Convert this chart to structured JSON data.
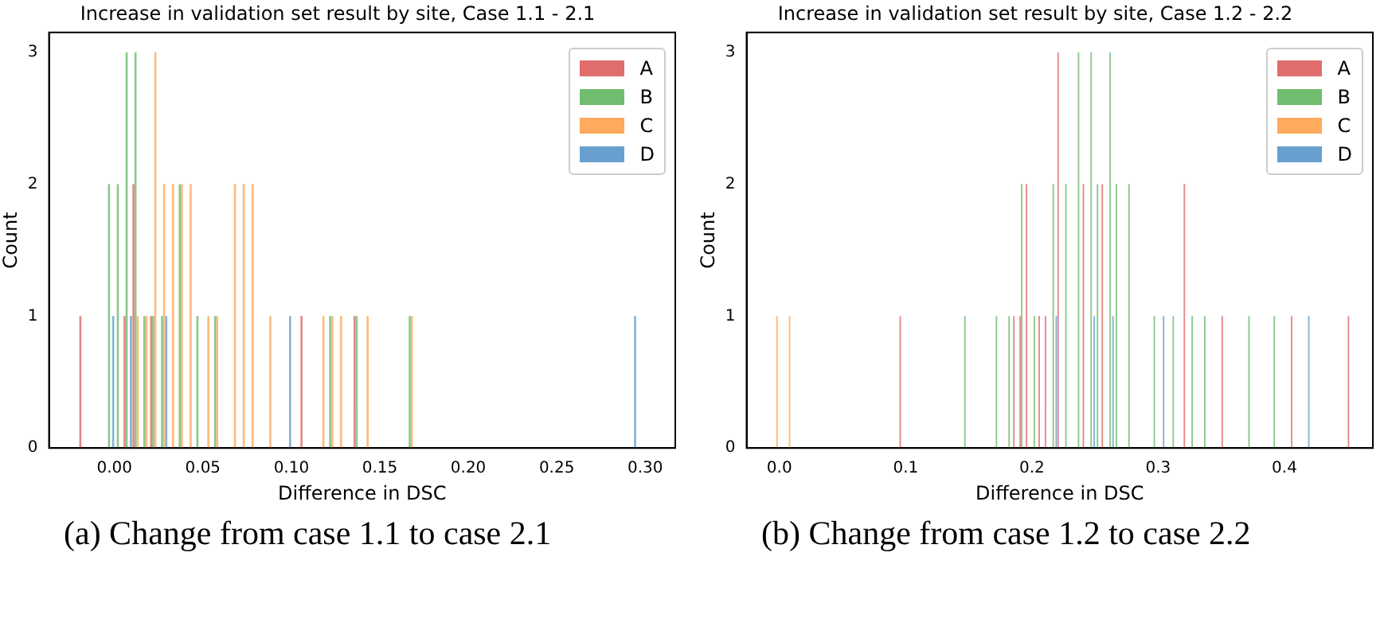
{
  "chart_data": [
    {
      "type": "histogram",
      "title": "Increase in validation set result by site, Case 1.1 - 2.1",
      "xlabel": "Difference in DSC",
      "ylabel": "Count",
      "annotations": [
        "(a) Change from case 1.1 to case 2.1"
      ],
      "legend": "top right",
      "xlim": [
        -0.037,
        0.317
      ],
      "xticks": [
        {
          "value": 0,
          "label": "0.00"
        },
        {
          "value": 0.05,
          "label": "0.05"
        },
        {
          "value": 0.1,
          "label": "0.10"
        },
        {
          "value": 0.15,
          "label": "0.15"
        },
        {
          "value": 0.2,
          "label": "0.20"
        },
        {
          "value": 0.25,
          "label": "0.25"
        },
        {
          "value": 0.3,
          "label": "0.30"
        }
      ],
      "ylim": [
        0,
        3.15
      ],
      "yticks": [
        0,
        1,
        2,
        3
      ],
      "bins": [
        -0.02,
        -0.015,
        -0.01,
        -0.005,
        0,
        0.005,
        0.01,
        0.015,
        0.02,
        0.025,
        0.03,
        0.035,
        0.04,
        0.045,
        0.05,
        0.055,
        0.06,
        0.065,
        0.07,
        0.075,
        0.08,
        0.085,
        0.09,
        0.095,
        0.1,
        0.105,
        0.11,
        0.115,
        0.12,
        0.125,
        0.13,
        0.135,
        0.14,
        0.145,
        0.15,
        0.155,
        0.16,
        0.165,
        0.17,
        0.175,
        0.18,
        0.185,
        0.19,
        0.195,
        0.2,
        0.205,
        0.21,
        0.215,
        0.22,
        0.225,
        0.23,
        0.235,
        0.24,
        0.245,
        0.25,
        0.255,
        0.26,
        0.265,
        0.27,
        0.275,
        0.28,
        0.285,
        0.29,
        0.295,
        0.3
      ],
      "series": [
        {
          "name": "A",
          "color": "#e06c6c",
          "values": [
            1,
            0,
            0,
            0,
            0,
            1,
            2,
            0,
            1,
            0,
            0,
            0,
            0,
            0,
            0,
            0,
            0,
            0,
            0,
            0,
            0,
            0,
            0,
            0,
            0,
            1,
            0,
            0,
            0,
            0,
            0,
            1,
            0,
            0,
            0,
            0,
            0,
            0,
            0,
            0,
            0,
            0,
            0,
            0,
            0,
            0,
            0,
            0,
            0,
            0,
            0,
            0,
            0,
            0,
            0,
            0,
            0,
            0,
            0,
            0,
            0,
            0,
            0,
            0
          ]
        },
        {
          "name": "B",
          "color": "#70bd70",
          "values": [
            0,
            0,
            0,
            2,
            2,
            3,
            3,
            1,
            1,
            1,
            0,
            2,
            0,
            1,
            0,
            1,
            0,
            0,
            0,
            0,
            0,
            0,
            0,
            0,
            0,
            0,
            0,
            0,
            1,
            0,
            0,
            1,
            0,
            0,
            0,
            0,
            0,
            1,
            0,
            0,
            0,
            0,
            0,
            0,
            0,
            0,
            0,
            0,
            0,
            0,
            0,
            0,
            0,
            0,
            0,
            0,
            0,
            0,
            0,
            0,
            0,
            0,
            0,
            0
          ]
        },
        {
          "name": "C",
          "color": "#ffaa5c",
          "values": [
            0,
            0,
            0,
            0,
            0,
            0,
            1,
            1,
            3,
            2,
            2,
            2,
            2,
            0,
            1,
            1,
            0,
            2,
            2,
            2,
            0,
            1,
            0,
            0,
            0,
            0,
            0,
            1,
            1,
            1,
            0,
            0,
            1,
            0,
            0,
            0,
            0,
            1,
            0,
            0,
            0,
            0,
            0,
            0,
            0,
            0,
            0,
            0,
            0,
            0,
            0,
            0,
            0,
            0,
            0,
            0,
            0,
            0,
            0,
            0,
            0,
            0,
            0,
            0
          ]
        },
        {
          "name": "D",
          "color": "#67a0cf",
          "values": [
            0,
            0,
            0,
            1,
            0,
            1,
            0,
            0,
            0,
            1,
            0,
            0,
            0,
            0,
            0,
            0,
            0,
            0,
            0,
            0,
            0,
            0,
            0,
            1,
            0,
            0,
            0,
            0,
            0,
            0,
            0,
            0,
            0,
            0,
            0,
            0,
            0,
            0,
            0,
            0,
            0,
            0,
            0,
            0,
            0,
            0,
            0,
            0,
            0,
            0,
            0,
            0,
            0,
            0,
            0,
            0,
            0,
            0,
            0,
            0,
            0,
            0,
            1,
            0
          ]
        }
      ]
    },
    {
      "type": "histogram",
      "title": "Increase in validation set result by site, Case 1.2 - 2.2",
      "xlabel": "Difference in DSC",
      "ylabel": "Count",
      "annotations": [
        "(b) Change from case 1.2 to case 2.2"
      ],
      "legend": "top right",
      "xlim": [
        -0.026,
        0.47
      ],
      "xticks": [
        {
          "value": 0,
          "label": "0.0"
        },
        {
          "value": 0.1,
          "label": "0.1"
        },
        {
          "value": 0.2,
          "label": "0.2"
        },
        {
          "value": 0.3,
          "label": "0.3"
        },
        {
          "value": 0.4,
          "label": "0.4"
        }
      ],
      "ylim": [
        0,
        3.15
      ],
      "yticks": [
        0,
        1,
        2,
        3
      ],
      "bins": [
        -0.01,
        -0.005,
        0,
        0.005,
        0.01,
        0.015,
        0.02,
        0.025,
        0.03,
        0.035,
        0.04,
        0.045,
        0.05,
        0.055,
        0.06,
        0.065,
        0.07,
        0.075,
        0.08,
        0.085,
        0.09,
        0.095,
        0.1,
        0.105,
        0.11,
        0.115,
        0.12,
        0.125,
        0.13,
        0.135,
        0.14,
        0.145,
        0.15,
        0.155,
        0.16,
        0.165,
        0.17,
        0.175,
        0.18,
        0.185,
        0.19,
        0.195,
        0.2,
        0.205,
        0.21,
        0.215,
        0.22,
        0.225,
        0.23,
        0.235,
        0.24,
        0.245,
        0.25,
        0.255,
        0.26,
        0.265,
        0.27,
        0.275,
        0.28,
        0.285,
        0.29,
        0.295,
        0.3,
        0.305,
        0.31,
        0.315,
        0.32,
        0.325,
        0.33,
        0.335,
        0.34,
        0.345,
        0.35,
        0.355,
        0.36,
        0.365,
        0.37,
        0.375,
        0.38,
        0.385,
        0.39,
        0.395,
        0.4,
        0.405,
        0.41,
        0.415,
        0.42,
        0.425,
        0.43,
        0.435,
        0.44,
        0.445,
        0.45,
        0.455,
        0.46,
        0.465,
        0.47
      ],
      "series": [
        {
          "name": "A",
          "color": "#e06c6c",
          "values": [
            0,
            0,
            0,
            0,
            0,
            0,
            0,
            0,
            0,
            0,
            0,
            0,
            0,
            0,
            0,
            0,
            0,
            0,
            0,
            0,
            0,
            1,
            0,
            0,
            0,
            0,
            0,
            0,
            0,
            0,
            0,
            0,
            0,
            0,
            0,
            0,
            0,
            0,
            0,
            1,
            1,
            2,
            0,
            1,
            1,
            0,
            3,
            0,
            0,
            0,
            2,
            0,
            0,
            2,
            0,
            0,
            0,
            0,
            0,
            0,
            0,
            0,
            0,
            0,
            0,
            0,
            2,
            0,
            0,
            0,
            0,
            0,
            1,
            0,
            0,
            0,
            0,
            0,
            0,
            0,
            0,
            0,
            0,
            1,
            0,
            0,
            0,
            0,
            0,
            0,
            0,
            0,
            1,
            0,
            0,
            0
          ]
        },
        {
          "name": "B",
          "color": "#70bd70",
          "values": [
            0,
            0,
            0,
            0,
            0,
            0,
            0,
            0,
            0,
            0,
            0,
            0,
            0,
            0,
            0,
            0,
            0,
            0,
            0,
            0,
            0,
            0,
            0,
            0,
            0,
            0,
            0,
            0,
            0,
            0,
            0,
            1,
            0,
            0,
            0,
            0,
            1,
            0,
            1,
            0,
            2,
            0,
            1,
            0,
            0,
            2,
            0,
            2,
            0,
            3,
            0,
            3,
            2,
            0,
            3,
            2,
            0,
            2,
            0,
            0,
            0,
            1,
            0,
            0,
            1,
            0,
            0,
            1,
            0,
            1,
            0,
            0,
            0,
            0,
            0,
            0,
            1,
            0,
            0,
            0,
            1,
            0,
            0,
            0,
            0,
            0,
            0,
            0,
            0,
            0,
            0,
            0,
            0,
            0,
            0,
            0
          ]
        },
        {
          "name": "C",
          "color": "#ffaa5c",
          "values": [
            0,
            1,
            0,
            1,
            0,
            0,
            0,
            0,
            0,
            0,
            0,
            0,
            0,
            0,
            0,
            0,
            0,
            0,
            0,
            0,
            0,
            0,
            0,
            0,
            0,
            0,
            0,
            0,
            0,
            0,
            0,
            0,
            0,
            0,
            0,
            0,
            0,
            0,
            0,
            0,
            0,
            0,
            0,
            0,
            0,
            0,
            0,
            0,
            0,
            0,
            0,
            0,
            0,
            0,
            0,
            0,
            0,
            0,
            0,
            0,
            0,
            0,
            0,
            0,
            0,
            0,
            0,
            0,
            0,
            0,
            0,
            0,
            0,
            0,
            0,
            0,
            0,
            0,
            0,
            0,
            0,
            0,
            0,
            0,
            0,
            0,
            0,
            0,
            0,
            0,
            0,
            0,
            0,
            0,
            0,
            0
          ]
        },
        {
          "name": "D",
          "color": "#67a0cf",
          "values": [
            0,
            0,
            0,
            0,
            0,
            0,
            0,
            0,
            0,
            0,
            0,
            0,
            0,
            0,
            0,
            0,
            0,
            0,
            0,
            0,
            0,
            0,
            0,
            0,
            0,
            0,
            0,
            0,
            0,
            0,
            0,
            0,
            0,
            0,
            0,
            0,
            0,
            0,
            0,
            0,
            0,
            0,
            0,
            0,
            0,
            1,
            0,
            0,
            0,
            0,
            0,
            1,
            0,
            0,
            1,
            0,
            0,
            0,
            0,
            0,
            0,
            0,
            1,
            0,
            0,
            0,
            0,
            0,
            0,
            0,
            0,
            0,
            0,
            0,
            0,
            0,
            0,
            0,
            0,
            0,
            0,
            0,
            0,
            0,
            0,
            1,
            0,
            0,
            0,
            0,
            0,
            0,
            0,
            0,
            0,
            0
          ]
        }
      ]
    }
  ]
}
